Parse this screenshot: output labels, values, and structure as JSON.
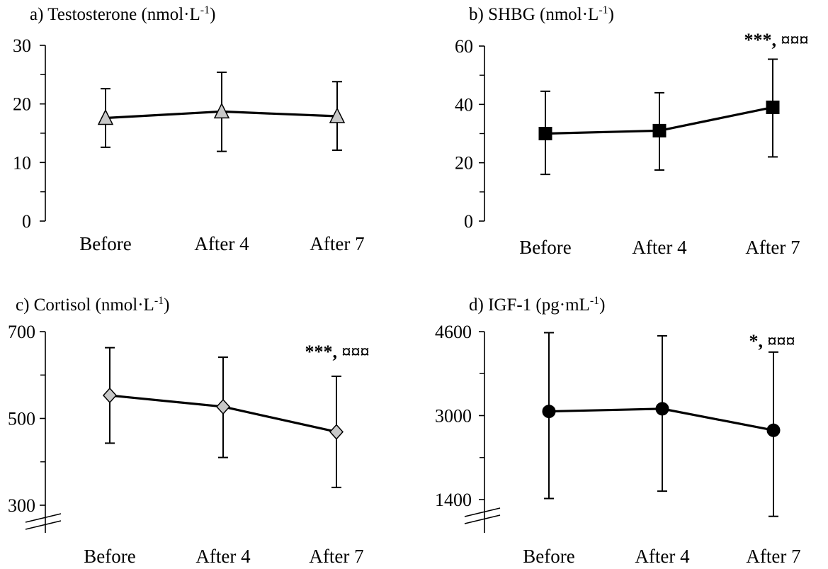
{
  "chart_data": [
    {
      "id": "a",
      "type": "line",
      "title": "a)  Testosterone (nmol·L",
      "title_sup": "-1",
      "title_end": ")",
      "categories": [
        "Before",
        "After 4",
        "After 7"
      ],
      "values": [
        17.6,
        18.7,
        17.9
      ],
      "error_low": [
        12.6,
        11.9,
        12.1
      ],
      "error_high": [
        22.6,
        25.4,
        23.8
      ],
      "ylim": [
        0,
        30
      ],
      "yticks": [
        0,
        10,
        20,
        30
      ],
      "ytick_labels": [
        "0",
        "10",
        "20",
        "30"
      ],
      "axis_break": false,
      "marker": "triangle",
      "marker_color": "#c8c8c8",
      "annotation": ""
    },
    {
      "id": "b",
      "type": "line",
      "title": "b)  SHBG (nmol·L",
      "title_sup": "-1",
      "title_end": ")",
      "categories": [
        "Before",
        "After 4",
        "After 7"
      ],
      "values": [
        30.0,
        31.0,
        39.0
      ],
      "error_low": [
        16.0,
        17.5,
        22.0
      ],
      "error_high": [
        44.5,
        44.0,
        55.5
      ],
      "ylim": [
        0,
        60
      ],
      "yticks": [
        0,
        20,
        40,
        60
      ],
      "ytick_labels": [
        "0",
        "20",
        "40",
        "60"
      ],
      "axis_break": false,
      "marker": "square",
      "marker_color": "#000000",
      "annotation": "***, ¤¤¤"
    },
    {
      "id": "c",
      "type": "line",
      "title": "c)  Cortisol (nmol·L",
      "title_sup": "-1",
      "title_end": ")",
      "categories": [
        "Before",
        "After 4",
        "After 7"
      ],
      "values": [
        553,
        527,
        469
      ],
      "error_low": [
        443,
        410,
        341
      ],
      "error_high": [
        663,
        641,
        597
      ],
      "ylim": [
        300,
        700
      ],
      "yticks": [
        300,
        500,
        700
      ],
      "ytick_labels": [
        "300",
        "500",
        "700"
      ],
      "axis_break": true,
      "marker": "diamond",
      "marker_color": "#c8c8c8",
      "annotation": "***, ¤¤¤"
    },
    {
      "id": "d",
      "type": "line",
      "title": "d)  IGF-1 (pg·mL",
      "title_sup": "-1",
      "title_end": ")",
      "categories": [
        "Before",
        "After 4",
        "After 7"
      ],
      "values": [
        3080,
        3130,
        2720
      ],
      "error_low": [
        1420,
        1560,
        1080
      ],
      "error_high": [
        4580,
        4520,
        4210
      ],
      "ylim": [
        1400,
        4600
      ],
      "yticks": [
        1400,
        3000,
        4600
      ],
      "ytick_labels": [
        "1400",
        "3000",
        "4600"
      ],
      "axis_break": true,
      "marker": "circle",
      "marker_color": "#000000",
      "annotation": "*, ¤¤¤"
    }
  ]
}
